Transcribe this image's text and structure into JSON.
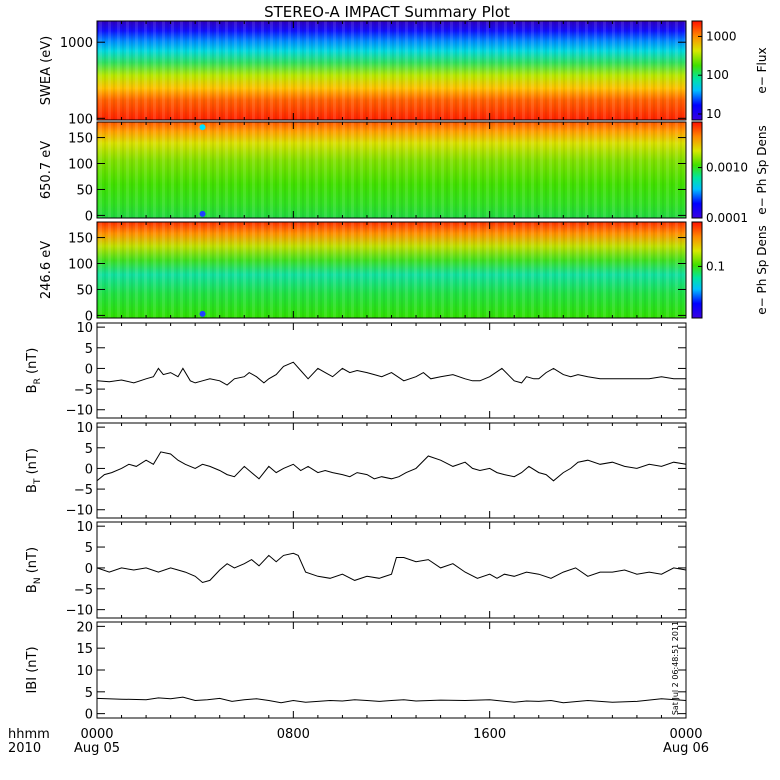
{
  "title": "STEREO-A IMPACT Summary Plot",
  "timestamp": "Sat Jul  2 06:48:51 2011",
  "x_axis": {
    "label_line1": "hhmm",
    "label_line2": "2010",
    "ticks": [
      {
        "time": "0000",
        "date": "Aug 05",
        "hour": 0
      },
      {
        "time": "0800",
        "date": "",
        "hour": 8
      },
      {
        "time": "1600",
        "date": "",
        "hour": 16
      },
      {
        "time": "0000",
        "date": "Aug 06",
        "hour": 24
      }
    ],
    "range_hours": [
      0,
      24
    ]
  },
  "chart_data": [
    {
      "type": "heatmap",
      "id": "swea",
      "ylabel": "SWEA (eV)",
      "yscale": "log",
      "ylim": [
        95,
        1900
      ],
      "yticks": [
        {
          "v": 100,
          "label": "100"
        },
        {
          "v": 1000,
          "label": "1000"
        }
      ],
      "colorbar": {
        "label": "e− Flux",
        "scale": "log",
        "range": [
          7,
          2500
        ],
        "ticks": [
          {
            "v": 10,
            "label": "10"
          },
          {
            "v": 100,
            "label": "100"
          },
          {
            "v": 1000,
            "label": "1000"
          }
        ]
      },
      "description": "Flux highest at low energies (red near 100 eV), decreasing to blue near 1800 eV; nearly uniform in time."
    },
    {
      "type": "heatmap",
      "id": "pad650",
      "ylabel": "650.7 eV",
      "ylim": [
        -5,
        180
      ],
      "yticks": [
        {
          "v": 0,
          "label": "0"
        },
        {
          "v": 50,
          "label": "50"
        },
        {
          "v": 100,
          "label": "100"
        },
        {
          "v": 150,
          "label": "150"
        }
      ],
      "colorbar": {
        "label": "e− Ph Sp Dens",
        "scale": "log",
        "range": [
          0.0001,
          0.008
        ],
        "ticks": [
          {
            "v": 0.0001,
            "label": "0.0001"
          },
          {
            "v": 0.001,
            "label": "0.0010"
          }
        ]
      },
      "features": [
        {
          "hour": 4.3,
          "pitch": 170,
          "note": "cyan spot"
        },
        {
          "hour": 4.3,
          "pitch": 3,
          "note": "blue spot"
        }
      ]
    },
    {
      "type": "heatmap",
      "id": "pad246",
      "ylabel": "246.6 eV",
      "ylim": [
        -5,
        180
      ],
      "yticks": [
        {
          "v": 0,
          "label": "0"
        },
        {
          "v": 50,
          "label": "50"
        },
        {
          "v": 100,
          "label": "100"
        },
        {
          "v": 150,
          "label": "150"
        }
      ],
      "colorbar": {
        "label": "e− Ph Sp Dens",
        "scale": "log",
        "range": [
          0.02,
          0.4
        ],
        "ticks": [
          {
            "v": 0.1,
            "label": "0.1"
          }
        ]
      },
      "features": [
        {
          "hour": 4.3,
          "pitch": 3,
          "note": "blue spot"
        }
      ]
    },
    {
      "type": "line",
      "id": "br",
      "ylabel_main": "B",
      "ylabel_sub": "R",
      "ylabel_unit": "(nT)",
      "ylim": [
        -12,
        11
      ],
      "yticks": [
        {
          "v": 10,
          "label": "10"
        },
        {
          "v": 5,
          "label": "5"
        },
        {
          "v": 0,
          "label": "0"
        },
        {
          "v": -5,
          "label": "−5"
        },
        {
          "v": -10,
          "label": "−10"
        }
      ],
      "x": [
        0,
        0.5,
        1,
        1.5,
        2,
        2.3,
        2.5,
        2.7,
        3,
        3.3,
        3.5,
        3.8,
        4,
        4.3,
        4.6,
        5,
        5.3,
        5.6,
        6,
        6.2,
        6.5,
        6.8,
        7,
        7.3,
        7.6,
        8,
        8.3,
        8.6,
        9,
        9.3,
        9.6,
        10,
        10.3,
        10.6,
        11,
        11.3,
        11.6,
        12,
        12.5,
        13,
        13.3,
        13.6,
        14,
        14.5,
        15,
        15.3,
        15.6,
        16,
        16.5,
        17,
        17.3,
        17.5,
        17.8,
        18,
        18.3,
        18.6,
        19,
        19.3,
        19.6,
        20,
        20.5,
        21,
        21.5,
        22,
        22.5,
        23,
        23.5,
        24
      ],
      "values": [
        -3,
        -3.2,
        -2.8,
        -3.5,
        -2.5,
        -2,
        0,
        -1.5,
        -1,
        -2,
        0,
        -3,
        -3.5,
        -3,
        -2.5,
        -3,
        -4,
        -2.5,
        -2,
        -1,
        -2,
        -3.5,
        -2.5,
        -1.5,
        0.5,
        1.5,
        -0.5,
        -2.5,
        0,
        -1,
        -2,
        0,
        -1,
        -0.5,
        -1,
        -1.5,
        -2,
        -1,
        -3,
        -2,
        -1,
        -2.5,
        -2,
        -1.5,
        -2.5,
        -3,
        -3,
        -2,
        0,
        -3,
        -3.5,
        -2,
        -2.5,
        -2.5,
        -1,
        0,
        -1.5,
        -2,
        -1.5,
        -2,
        -2.5,
        -2.5,
        -2.5,
        -2.5,
        -2.5,
        -2,
        -2.5,
        -2.5
      ]
    },
    {
      "type": "line",
      "id": "bt",
      "ylabel_main": "B",
      "ylabel_sub": "T",
      "ylabel_unit": "(nT)",
      "ylim": [
        -12,
        11
      ],
      "yticks": [
        {
          "v": 10,
          "label": "10"
        },
        {
          "v": 5,
          "label": "5"
        },
        {
          "v": 0,
          "label": "0"
        },
        {
          "v": -5,
          "label": "−5"
        },
        {
          "v": -10,
          "label": "−10"
        }
      ],
      "x": [
        0,
        0.3,
        0.6,
        1,
        1.3,
        1.6,
        2,
        2.3,
        2.6,
        3,
        3.3,
        3.6,
        4,
        4.3,
        4.6,
        5,
        5.3,
        5.6,
        6,
        6.3,
        6.6,
        7,
        7.3,
        7.6,
        8,
        8.3,
        8.6,
        9,
        9.3,
        9.6,
        10,
        10.3,
        10.6,
        11,
        11.3,
        11.6,
        12,
        12.3,
        12.6,
        13,
        13.5,
        14,
        14.5,
        15,
        15.3,
        15.6,
        16,
        16.3,
        16.6,
        17,
        17.3,
        17.6,
        18,
        18.3,
        18.6,
        19,
        19.3,
        19.6,
        20,
        20.5,
        21,
        21.5,
        22,
        22.5,
        23,
        23.5,
        24
      ],
      "values": [
        -3,
        -1.5,
        -1,
        0,
        1,
        0.5,
        2,
        1,
        4,
        3.5,
        2,
        1,
        0,
        1,
        0.5,
        -0.5,
        -1.5,
        -2,
        0.5,
        -1,
        -2.5,
        0.5,
        -1,
        0,
        1,
        -0.5,
        0.5,
        -1,
        -0.5,
        -1,
        -1.5,
        -2,
        -1,
        -1.5,
        -2.5,
        -2,
        -2.5,
        -2,
        -1,
        0,
        3,
        2,
        0.5,
        1.5,
        0,
        -0.5,
        0,
        -1,
        -1.5,
        -2,
        -1,
        0.5,
        -1,
        -1.5,
        -3,
        -1,
        0,
        1.5,
        2,
        1,
        1.5,
        0.5,
        0,
        1,
        0.5,
        1.5,
        1
      ]
    },
    {
      "type": "line",
      "id": "bn",
      "ylabel_main": "B",
      "ylabel_sub": "N",
      "ylabel_unit": "(nT)",
      "ylim": [
        -12,
        11
      ],
      "yticks": [
        {
          "v": 10,
          "label": "10"
        },
        {
          "v": 5,
          "label": "5"
        },
        {
          "v": 0,
          "label": "0"
        },
        {
          "v": -5,
          "label": "−5"
        },
        {
          "v": -10,
          "label": "−10"
        }
      ],
      "x": [
        0,
        0.5,
        1,
        1.5,
        2,
        2.5,
        3,
        3.3,
        3.6,
        4,
        4.3,
        4.6,
        5,
        5.3,
        5.6,
        6,
        6.3,
        6.6,
        7,
        7.3,
        7.6,
        8,
        8.2,
        8.5,
        9,
        9.5,
        10,
        10.5,
        11,
        11.5,
        12,
        12.2,
        12.5,
        13,
        13.5,
        14,
        14.5,
        15,
        15.5,
        16,
        16.3,
        16.6,
        17,
        17.5,
        18,
        18.5,
        19,
        19.5,
        20,
        20.5,
        21,
        21.5,
        22,
        22.5,
        23,
        23.5,
        24
      ],
      "values": [
        0,
        -1,
        0,
        -0.5,
        0,
        -1,
        0,
        -0.5,
        -1,
        -2,
        -3.5,
        -3,
        -0.5,
        1,
        0,
        1,
        2,
        0.5,
        3,
        1.5,
        3,
        3.5,
        3,
        -1,
        -2,
        -2.5,
        -1.5,
        -3,
        -2,
        -2.5,
        -1.5,
        2.5,
        2.5,
        1.5,
        2,
        0,
        1,
        -1,
        -2.5,
        -1.5,
        -2.5,
        -1.5,
        -2,
        -1,
        -1.5,
        -2.5,
        -1,
        0,
        -2,
        -1,
        -1,
        -0.5,
        -1.5,
        -1,
        -1.5,
        0,
        -0.5
      ]
    },
    {
      "type": "line",
      "id": "bmag",
      "ylabel_main": "IBI",
      "ylabel_sub": "",
      "ylabel_unit": "(nT)",
      "ylim": [
        -1,
        21
      ],
      "yticks": [
        {
          "v": 20,
          "label": "20"
        },
        {
          "v": 15,
          "label": "15"
        },
        {
          "v": 10,
          "label": "10"
        },
        {
          "v": 5,
          "label": "5"
        },
        {
          "v": 0,
          "label": "0"
        }
      ],
      "x": [
        0,
        1,
        2,
        2.5,
        3,
        3.5,
        4,
        4.5,
        5,
        5.5,
        6,
        6.5,
        7,
        7.5,
        8,
        8.5,
        9,
        9.5,
        10,
        10.5,
        11,
        11.5,
        12,
        12.5,
        13,
        14,
        15,
        16,
        17,
        17.5,
        18,
        18.5,
        19,
        20,
        21,
        22,
        23,
        24
      ],
      "values": [
        3.5,
        3.3,
        3.2,
        3.6,
        3.4,
        3.8,
        3,
        3.2,
        3.5,
        2.8,
        3.2,
        3.4,
        3,
        2.5,
        3,
        2.6,
        2.8,
        3,
        2.9,
        3.2,
        3,
        2.8,
        3,
        3.2,
        2.9,
        3.1,
        3,
        3.2,
        2.6,
        2.9,
        2.8,
        3,
        2.5,
        3,
        2.6,
        2.8,
        3.4,
        3
      ]
    }
  ]
}
